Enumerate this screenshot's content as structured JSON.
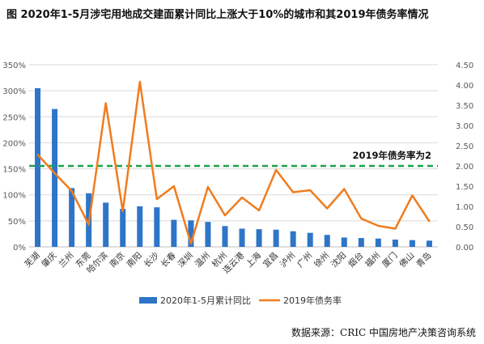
{
  "title": "图 2020年1-5月涉宅用地成交建面累计同比上涨大于10%的城市和其2019年债务率情况",
  "source": "数据来源：CRIC 中国房地产决策咨询系统",
  "colors": {
    "bar": "#2e75c8",
    "line": "#f07c1e",
    "threshold": "#1aa34a",
    "grid": "#d9d9d9",
    "axis_text": "#595959"
  },
  "chart_data": {
    "type": "bar",
    "categories": [
      "芜湖",
      "肇庆",
      "兰州",
      "东莞",
      "哈尔滨",
      "南京",
      "南阳",
      "长沙",
      "长春",
      "深圳",
      "温州",
      "杭州",
      "连云港",
      "上海",
      "宜昌",
      "泸州",
      "广州",
      "徐州",
      "沈阳",
      "烟台",
      "福州",
      "厦门",
      "佛山",
      "青岛"
    ],
    "series": [
      {
        "name": "2020年1-5月累计同比",
        "type": "bar",
        "axis": "left",
        "values": [
          305,
          265,
          113,
          103,
          85,
          73,
          78,
          76,
          52,
          51,
          48,
          40,
          35,
          34,
          33,
          30,
          27,
          23,
          18,
          17,
          16,
          14,
          13,
          12
        ]
      },
      {
        "name": "2019年债务率",
        "type": "line",
        "axis": "right",
        "values": [
          2.28,
          1.82,
          1.38,
          0.55,
          3.55,
          0.88,
          4.08,
          1.18,
          1.5,
          0.08,
          1.48,
          0.78,
          1.22,
          0.9,
          1.9,
          1.35,
          1.4,
          0.95,
          1.43,
          0.7,
          0.52,
          0.45,
          1.27,
          0.63
        ]
      }
    ],
    "reference_line": {
      "value": 2,
      "axis": "right",
      "label": "2019年债务率为2"
    },
    "y_left": {
      "ylim": [
        0,
        350
      ],
      "ticks": [
        "0%",
        "50%",
        "100%",
        "150%",
        "200%",
        "250%",
        "300%",
        "350%"
      ]
    },
    "y_right": {
      "ylim": [
        0,
        4.5
      ],
      "ticks": [
        "0.00",
        "0.50",
        "1.00",
        "1.50",
        "2.00",
        "2.50",
        "3.00",
        "3.50",
        "4.00",
        "4.50"
      ]
    },
    "legend": {
      "position": "bottom"
    },
    "grid": true
  }
}
